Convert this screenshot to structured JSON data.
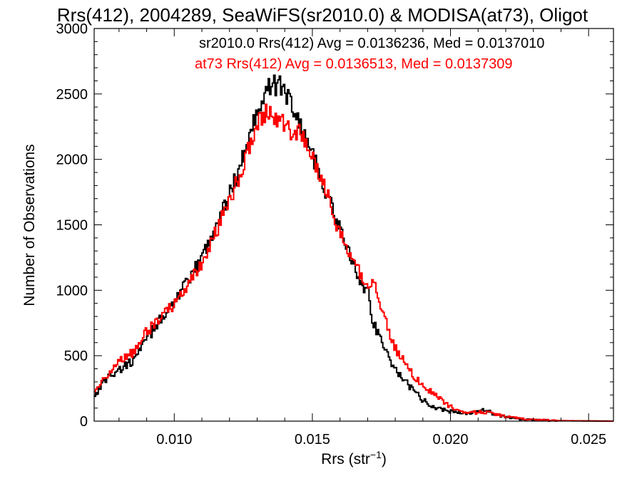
{
  "chart_data": {
    "type": "line",
    "title": "Rrs(412), 2004289, SeaWiFS(sr2010.0) & MODISA(at73), Oligot",
    "xlabel_base": "Rrs (str",
    "xlabel_sup": "−1",
    "xlabel_close": ")",
    "ylabel": "Number of Observations",
    "xlim": [
      0.0071,
      0.0259
    ],
    "ylim": [
      0,
      3000
    ],
    "xticks": [
      {
        "value": 0.01,
        "label": "0.010"
      },
      {
        "value": 0.015,
        "label": "0.015"
      },
      {
        "value": 0.02,
        "label": "0.020"
      },
      {
        "value": 0.025,
        "label": "0.025"
      }
    ],
    "yticks": [
      {
        "value": 0,
        "label": "0"
      },
      {
        "value": 500,
        "label": "500"
      },
      {
        "value": 1000,
        "label": "1000"
      },
      {
        "value": 1500,
        "label": "1500"
      },
      {
        "value": 2000,
        "label": "2000"
      },
      {
        "value": 2500,
        "label": "2500"
      },
      {
        "value": 3000,
        "label": "3000"
      }
    ],
    "annotations": [
      {
        "text": "sr2010.0 Rrs(412) Avg = 0.0136236, Med = 0.0137010",
        "color": "#000000"
      },
      {
        "text": "at73 Rrs(412) Avg = 0.0136513, Med = 0.0137309",
        "color": "#ff0000"
      }
    ],
    "series": [
      {
        "color": "#000000",
        "x": [
          0.0071,
          0.0075,
          0.008,
          0.0085,
          0.009,
          0.0095,
          0.01,
          0.0105,
          0.011,
          0.0115,
          0.012,
          0.0125,
          0.0128,
          0.0131,
          0.0134,
          0.0136,
          0.0138,
          0.014,
          0.0142,
          0.0145,
          0.0148,
          0.015,
          0.0155,
          0.016,
          0.0163,
          0.0165,
          0.0168,
          0.017,
          0.0172,
          0.0175,
          0.0178,
          0.018,
          0.0185,
          0.019,
          0.0195,
          0.02,
          0.0205,
          0.021,
          0.0213,
          0.0215,
          0.022,
          0.0225,
          0.023,
          0.024,
          0.0259
        ],
        "y": [
          190,
          320,
          390,
          460,
          620,
          780,
          920,
          1060,
          1250,
          1490,
          1730,
          2020,
          2250,
          2440,
          2540,
          2560,
          2580,
          2520,
          2450,
          2300,
          2160,
          2040,
          1750,
          1470,
          1290,
          1180,
          1050,
          1000,
          760,
          620,
          470,
          400,
          270,
          160,
          100,
          75,
          60,
          70,
          90,
          60,
          30,
          15,
          8,
          3,
          0
        ]
      },
      {
        "color": "#ff0000",
        "x": [
          0.0071,
          0.0075,
          0.008,
          0.0085,
          0.009,
          0.0095,
          0.01,
          0.0105,
          0.011,
          0.0115,
          0.012,
          0.0125,
          0.0128,
          0.0131,
          0.0134,
          0.0136,
          0.0138,
          0.014,
          0.0142,
          0.0145,
          0.0148,
          0.015,
          0.0155,
          0.016,
          0.0163,
          0.0165,
          0.0168,
          0.017,
          0.0172,
          0.0175,
          0.0178,
          0.018,
          0.0185,
          0.019,
          0.0195,
          0.02,
          0.0205,
          0.021,
          0.0213,
          0.0215,
          0.022,
          0.0225,
          0.023,
          0.024,
          0.0259
        ],
        "y": [
          200,
          340,
          470,
          520,
          680,
          790,
          900,
          1030,
          1210,
          1440,
          1680,
          1960,
          2160,
          2310,
          2370,
          2350,
          2300,
          2260,
          2220,
          2200,
          2130,
          2010,
          1760,
          1430,
          1270,
          1190,
          1110,
          1000,
          1080,
          880,
          680,
          560,
          390,
          270,
          190,
          110,
          70,
          65,
          70,
          60,
          35,
          20,
          10,
          4,
          0
        ]
      }
    ]
  }
}
